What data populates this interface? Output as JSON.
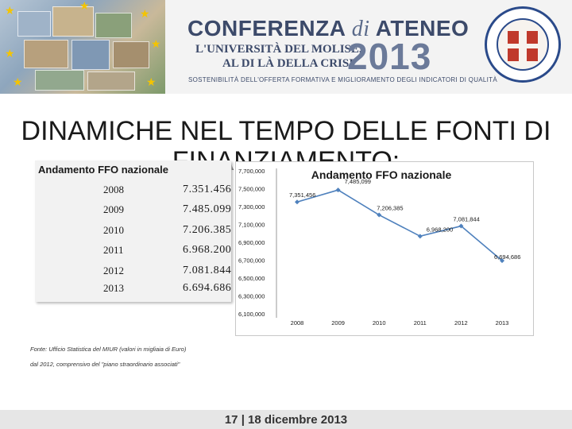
{
  "header": {
    "conference_prefix": "CONFERENZA",
    "conference_di": "di",
    "conference_suffix": "ATENEO",
    "subtitle_line1": "L'UNIVERSITÀ DEL MOLISE,",
    "subtitle_line2": "AL DI LÀ DELLA CRISI",
    "year": "2013",
    "tagline": "SOSTENIBILITÀ DELL'OFFERTA FORMATIVA E MIGLIORAMENTO DEGLI INDICATORI DI QUALITÀ"
  },
  "slide": {
    "title_line1": "DINAMICHE NEL TEMPO DELLE FONTI DI",
    "title_line2": "FINANZIAMENTO:"
  },
  "table": {
    "title": "Andamento FFO nazionale",
    "rows": [
      {
        "year": "2008",
        "value": "7.351.456"
      },
      {
        "year": "2009",
        "value": "7.485.099"
      },
      {
        "year": "2010",
        "value": "7.206.385"
      },
      {
        "year": "2011",
        "value": "6.968.200"
      },
      {
        "year": "2012",
        "value": "7.081.844"
      },
      {
        "year": "2013",
        "value": "6.694.686"
      }
    ]
  },
  "chart_data": {
    "type": "line",
    "title": "Andamento FFO nazionale",
    "xlabel": "",
    "ylabel": "",
    "categories": [
      "2008",
      "2009",
      "2010",
      "2011",
      "2012",
      "2013"
    ],
    "series": [
      {
        "values": [
          7351456,
          7485099,
          7206385,
          6968200,
          7081844,
          6694686
        ]
      }
    ],
    "data_labels": [
      "7,351,456",
      "7,485,099",
      "7,206,385",
      "6,968,200",
      "7,081,844",
      "6,694,686"
    ],
    "y_ticks": [
      "6,100,000",
      "6,300,000",
      "6,500,000",
      "6,700,000",
      "6,900,000",
      "7,100,000",
      "7,300,000",
      "7,500,000",
      "7,700,000"
    ],
    "ylim": [
      6100000,
      7700000
    ],
    "grid": false,
    "legend": "none",
    "line_color": "#4f81bd"
  },
  "source": {
    "line1": "Fonte: Ufficio Statistica del MIUR (valori in migliaia di Euro)",
    "line2": "dal 2012, comprensivo del \"piano straordinario associati\""
  },
  "footer": {
    "dates": "17 | 18 dicembre 2013"
  }
}
